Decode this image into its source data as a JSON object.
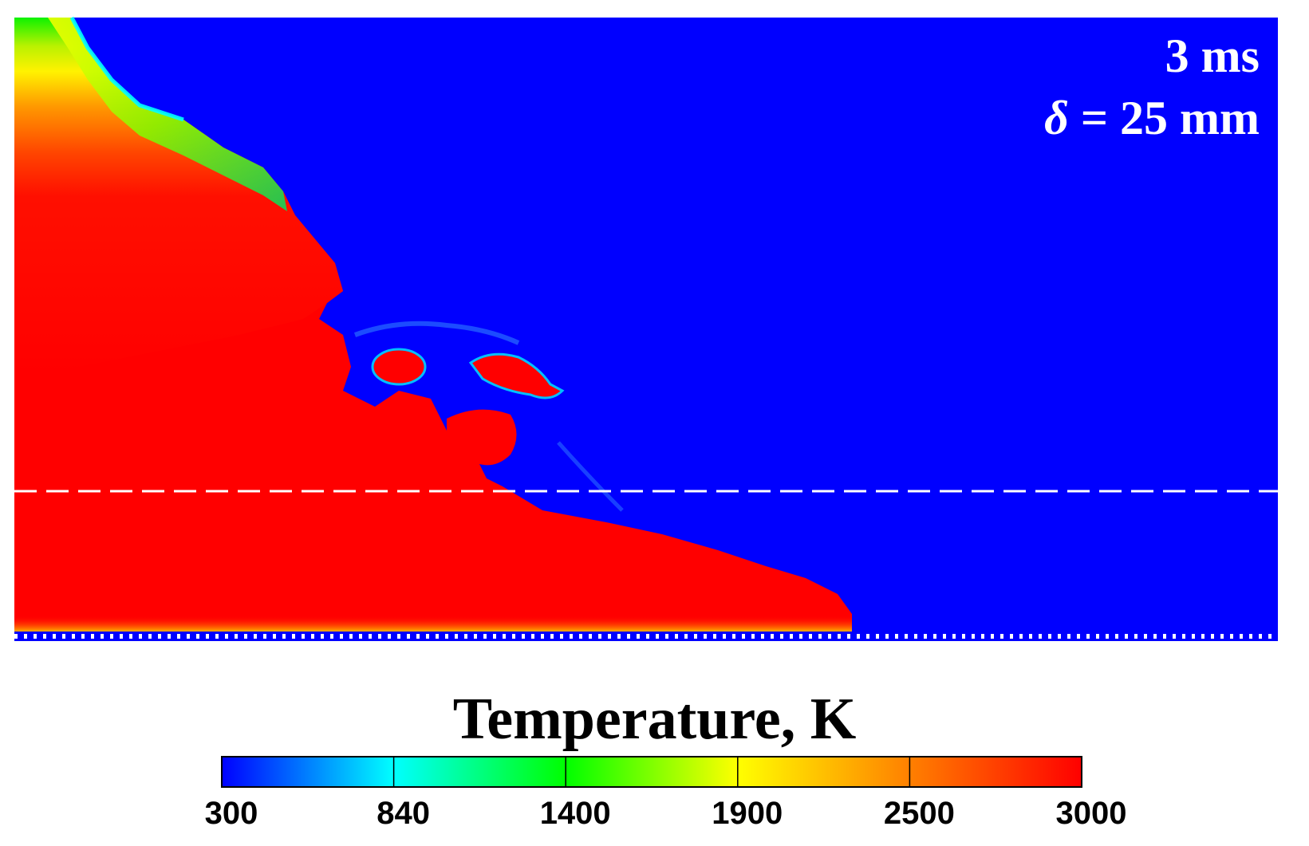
{
  "annotations": {
    "time": "3 ms",
    "delta_symbol": "δ",
    "delta_value": " = 25 mm"
  },
  "chart_data": {
    "type": "heatmap",
    "title": "",
    "field": "Temperature",
    "colorbar": {
      "title": "Temperature, K",
      "min": 300,
      "max": 3000,
      "ticks": [
        300,
        840,
        1400,
        1900,
        2500,
        3000
      ],
      "tick_labels": [
        "300",
        "840",
        "1400",
        "1900",
        "2500",
        "3000"
      ],
      "colors": [
        "#0000ff",
        "#00ffff",
        "#00ff00",
        "#ffff00",
        "#ff0000"
      ]
    },
    "background_value_K": 300,
    "flame_core_value_K": 3000,
    "reference_line": "dashed white horizontal line"
  }
}
